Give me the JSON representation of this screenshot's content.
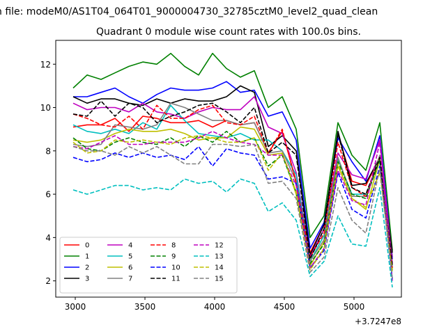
{
  "suptitle": "n file: modeM0/AS1T04_064T01_9000004730_32785cztM0_level2_quad_clean",
  "chart_data": {
    "type": "line",
    "title": "Quadrant 0 module wise count rates with 100.0s bins.",
    "xlabel": "",
    "ylabel": "",
    "offset_label": "+3.7247e8",
    "x_offset": 372470000,
    "xlim": [
      2860,
      5340
    ],
    "ylim": [
      1.25,
      13.1
    ],
    "xticks": [
      3000,
      3500,
      4000,
      4500,
      5000
    ],
    "yticks": [
      2,
      4,
      6,
      8,
      10,
      12
    ],
    "x": [
      2985,
      3085,
      3185,
      3285,
      3385,
      3485,
      3585,
      3685,
      3785,
      3885,
      3985,
      4085,
      4185,
      4285,
      4385,
      4485,
      4585,
      4685,
      4785,
      4885,
      4985,
      5085,
      5185,
      5275
    ],
    "legend": {
      "location": "lower-left",
      "columns": 4
    },
    "series": [
      {
        "name": "0",
        "color": "#ff0000",
        "dash": "solid",
        "values": [
          9.1,
          9.2,
          9.2,
          9.5,
          8.9,
          9.6,
          9.5,
          9.3,
          9.3,
          9.4,
          9.1,
          9.4,
          9.2,
          9.3,
          7.9,
          8.9,
          6.6,
          3.3,
          4.6,
          8.8,
          6.6,
          6.4,
          7.7,
          3.1
        ]
      },
      {
        "name": "1",
        "color": "#008000",
        "dash": "solid",
        "values": [
          10.9,
          11.5,
          11.3,
          11.6,
          11.9,
          12.1,
          12.0,
          12.5,
          11.9,
          11.5,
          12.5,
          11.8,
          11.4,
          11.7,
          10.0,
          10.5,
          9.0,
          4.0,
          5.0,
          9.3,
          7.8,
          7.1,
          9.3,
          3.4
        ]
      },
      {
        "name": "2",
        "color": "#0000ff",
        "dash": "solid",
        "values": [
          10.5,
          10.5,
          10.7,
          10.9,
          10.5,
          10.2,
          10.6,
          10.9,
          10.8,
          10.8,
          10.9,
          11.2,
          10.7,
          10.8,
          9.6,
          9.8,
          8.5,
          3.5,
          4.7,
          8.6,
          7.5,
          6.6,
          8.7,
          3.0
        ]
      },
      {
        "name": "3",
        "color": "#000000",
        "dash": "solid",
        "values": [
          10.5,
          10.2,
          10.4,
          10.4,
          10.2,
          10.1,
          10.4,
          10.2,
          10.4,
          10.3,
          10.3,
          10.5,
          11.0,
          10.7,
          8.2,
          8.7,
          8.0,
          3.2,
          4.6,
          8.9,
          6.4,
          6.5,
          7.7,
          3.3
        ]
      },
      {
        "name": "4",
        "color": "#bf00bf",
        "dash": "solid",
        "values": [
          10.2,
          9.9,
          10.0,
          10.0,
          9.8,
          10.2,
          9.8,
          9.7,
          9.5,
          9.8,
          10.0,
          9.9,
          9.9,
          10.5,
          9.1,
          8.8,
          7.0,
          3.1,
          4.4,
          7.9,
          6.9,
          6.7,
          8.5,
          2.8
        ]
      },
      {
        "name": "5",
        "color": "#00bfbf",
        "dash": "solid",
        "values": [
          9.2,
          8.9,
          8.8,
          9.0,
          8.8,
          9.3,
          9.0,
          10.1,
          9.4,
          8.8,
          8.7,
          8.6,
          8.8,
          8.5,
          8.5,
          8.0,
          6.9,
          2.9,
          4.1,
          7.6,
          6.0,
          6.0,
          7.5,
          2.6
        ]
      },
      {
        "name": "6",
        "color": "#bfbf00",
        "dash": "solid",
        "values": [
          8.5,
          8.4,
          8.5,
          8.8,
          9.0,
          8.9,
          8.9,
          9.0,
          8.8,
          8.5,
          8.6,
          8.6,
          9.1,
          9.0,
          7.8,
          7.9,
          6.0,
          2.7,
          3.8,
          7.3,
          5.8,
          5.3,
          7.6,
          2.5
        ]
      },
      {
        "name": "7",
        "color": "#808080",
        "dash": "solid",
        "values": [
          8.3,
          8.2,
          8.3,
          9.2,
          9.1,
          9.0,
          9.2,
          10.2,
          10.0,
          9.7,
          9.4,
          9.4,
          9.2,
          9.3,
          7.9,
          8.0,
          6.6,
          2.9,
          3.9,
          7.7,
          5.9,
          5.9,
          7.8,
          2.6
        ]
      },
      {
        "name": "8",
        "color": "#ff0000",
        "dash": "dashed",
        "values": [
          9.7,
          9.5,
          9.2,
          9.1,
          9.6,
          9.0,
          10.1,
          9.5,
          9.5,
          9.9,
          10.1,
          9.3,
          9.2,
          9.6,
          7.9,
          9.0,
          6.5,
          3.1,
          4.2,
          8.4,
          6.3,
          5.9,
          7.7,
          2.6
        ]
      },
      {
        "name": "9",
        "color": "#008000",
        "dash": "dashed",
        "values": [
          8.6,
          8.1,
          8.0,
          8.4,
          8.6,
          8.4,
          8.3,
          8.6,
          8.2,
          8.7,
          8.4,
          8.9,
          8.4,
          8.6,
          7.3,
          7.8,
          6.1,
          2.8,
          3.7,
          7.5,
          6.0,
          5.8,
          7.6,
          2.4
        ]
      },
      {
        "name": "10",
        "color": "#0000ff",
        "dash": "dashed",
        "values": [
          7.7,
          7.5,
          7.6,
          7.9,
          7.7,
          7.9,
          7.7,
          7.8,
          7.6,
          8.2,
          7.3,
          8.1,
          7.9,
          7.8,
          6.7,
          6.8,
          6.5,
          2.6,
          3.4,
          7.0,
          5.3,
          4.9,
          7.3,
          2.1
        ]
      },
      {
        "name": "11",
        "color": "#000000",
        "dash": "dashed",
        "values": [
          9.7,
          9.6,
          10.3,
          9.6,
          10.2,
          10.0,
          9.3,
          9.6,
          9.8,
          10.1,
          10.2,
          9.8,
          9.3,
          10.0,
          7.9,
          8.4,
          7.8,
          3.0,
          4.4,
          8.8,
          6.3,
          6.0,
          7.7,
          2.7
        ]
      },
      {
        "name": "12",
        "color": "#bf00bf",
        "dash": "dashed",
        "values": [
          8.2,
          8.1,
          8.4,
          8.7,
          8.3,
          8.3,
          8.4,
          8.4,
          8.4,
          8.6,
          8.9,
          8.6,
          8.4,
          8.3,
          7.8,
          7.8,
          6.4,
          2.6,
          3.5,
          7.1,
          5.7,
          5.5,
          8.4,
          2.0
        ]
      },
      {
        "name": "13",
        "color": "#00bfbf",
        "dash": "dashed",
        "values": [
          6.2,
          6.0,
          6.2,
          6.4,
          6.4,
          6.2,
          6.3,
          6.2,
          6.7,
          6.5,
          6.6,
          6.1,
          6.7,
          6.5,
          5.2,
          5.6,
          4.8,
          2.2,
          2.9,
          5.0,
          3.7,
          3.6,
          6.3,
          1.7
        ]
      },
      {
        "name": "14",
        "color": "#bfbf00",
        "dash": "dashed",
        "values": [
          8.4,
          7.9,
          8.0,
          8.5,
          8.4,
          8.5,
          8.4,
          8.3,
          8.6,
          8.7,
          8.6,
          8.4,
          8.4,
          8.6,
          7.1,
          7.9,
          6.1,
          2.5,
          3.5,
          7.4,
          5.8,
          5.4,
          7.0,
          2.4
        ]
      },
      {
        "name": "15",
        "color": "#808080",
        "dash": "dashed",
        "values": [
          8.2,
          8.0,
          8.0,
          7.8,
          8.2,
          7.9,
          8.2,
          7.8,
          7.4,
          7.4,
          8.3,
          8.3,
          8.2,
          8.3,
          6.5,
          6.6,
          5.8,
          2.4,
          3.1,
          6.3,
          4.8,
          4.2,
          7.2,
          2.1
        ]
      }
    ]
  }
}
